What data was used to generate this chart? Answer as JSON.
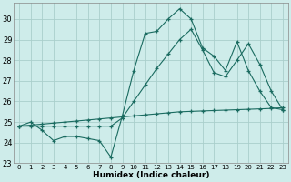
{
  "xlabel": "Humidex (Indice chaleur)",
  "background_color": "#ceecea",
  "grid_color": "#aacfcb",
  "line_color": "#1a6b60",
  "x": [
    0,
    1,
    2,
    3,
    4,
    5,
    6,
    7,
    8,
    9,
    10,
    11,
    12,
    13,
    14,
    15,
    16,
    17,
    18,
    19,
    20,
    21,
    22,
    23
  ],
  "line_jagged": [
    24.8,
    25.0,
    24.6,
    24.1,
    24.3,
    24.3,
    24.2,
    24.1,
    23.3,
    25.3,
    27.5,
    29.3,
    29.4,
    30.0,
    30.5,
    30.0,
    28.6,
    28.2,
    27.5,
    28.9,
    27.5,
    26.5,
    25.7,
    25.6
  ],
  "line_mid": [
    24.8,
    24.8,
    24.8,
    24.8,
    24.8,
    24.8,
    24.8,
    24.8,
    24.8,
    25.2,
    26.0,
    26.8,
    27.6,
    28.3,
    29.0,
    29.5,
    28.5,
    27.4,
    27.2,
    28.0,
    28.8,
    27.8,
    26.5,
    25.6
  ],
  "line_straight": [
    24.8,
    24.85,
    24.9,
    24.95,
    25.0,
    25.05,
    25.1,
    25.15,
    25.2,
    25.25,
    25.3,
    25.35,
    25.4,
    25.45,
    25.5,
    25.52,
    25.54,
    25.56,
    25.58,
    25.6,
    25.62,
    25.64,
    25.66,
    25.7
  ],
  "ylim": [
    23.0,
    30.8
  ],
  "xlim": [
    -0.5,
    23.5
  ],
  "yticks": [
    23,
    24,
    25,
    26,
    27,
    28,
    29,
    30
  ],
  "xticks": [
    0,
    1,
    2,
    3,
    4,
    5,
    6,
    7,
    8,
    9,
    10,
    11,
    12,
    13,
    14,
    15,
    16,
    17,
    18,
    19,
    20,
    21,
    22,
    23
  ]
}
